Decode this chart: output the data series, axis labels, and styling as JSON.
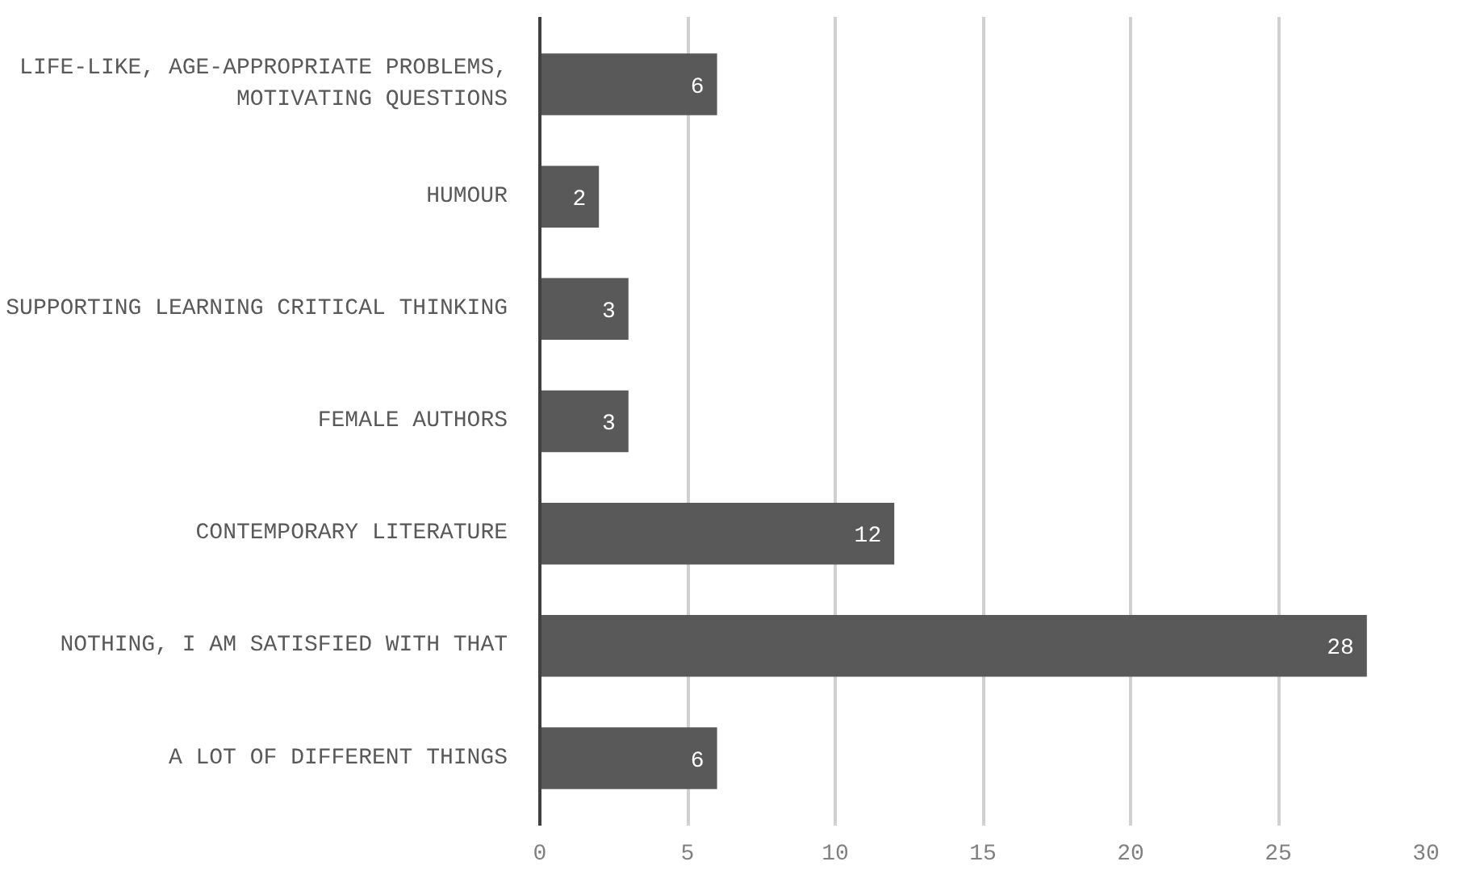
{
  "chart_data": {
    "type": "bar",
    "orientation": "horizontal",
    "categories": [
      "LIFE-LIKE, AGE-APPROPRIATE PROBLEMS, MOTIVATING QUESTIONS",
      "HUMOUR",
      "SUPPORTING LEARNING CRITICAL THINKING",
      "FEMALE AUTHORS",
      "CONTEMPORARY LITERATURE",
      "NOTHING, I AM SATISFIED WITH THAT",
      "A LOT OF DIFFERENT THINGS"
    ],
    "values": [
      6,
      2,
      3,
      3,
      12,
      28,
      6
    ],
    "color": "#595959",
    "xlim": [
      0,
      30
    ],
    "xticks": [
      0,
      5,
      10,
      15,
      20,
      25,
      30
    ],
    "grid": "x",
    "data_labels": true
  }
}
